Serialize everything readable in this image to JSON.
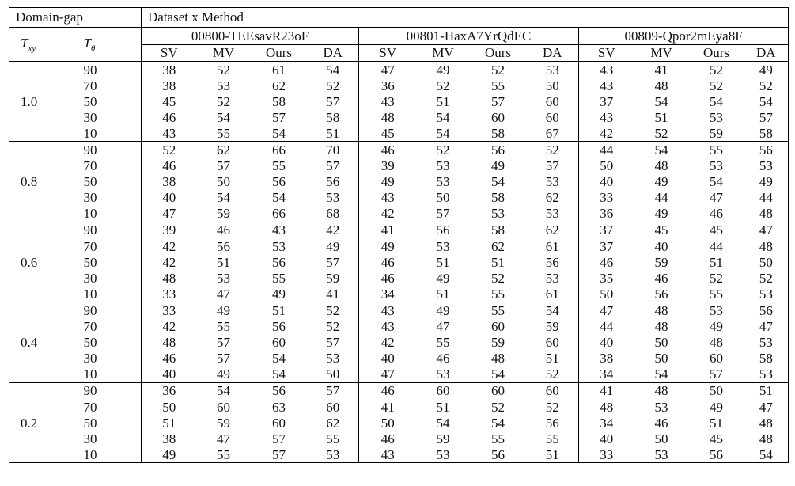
{
  "header": {
    "domain_gap": "Domain-gap",
    "dataset_method": "Dataset x Method",
    "txy_symbol": "T",
    "txy_sub": "xy",
    "ttheta_symbol": "T",
    "ttheta_sub": "θ",
    "methods": [
      "SV",
      "MV",
      "Ours",
      "DA"
    ]
  },
  "datasets": [
    "00800-TEEsavR23oF",
    "00801-HaxA7YrQdEC",
    "00809-Qpor2mEya8F"
  ],
  "blocks": [
    {
      "txy": "1.0",
      "rows": [
        {
          "t": "90",
          "v": [
            "38",
            "52",
            "61",
            "54",
            "47",
            "49",
            "52",
            "53",
            "43",
            "41",
            "52",
            "49"
          ]
        },
        {
          "t": "70",
          "v": [
            "38",
            "53",
            "62",
            "52",
            "36",
            "52",
            "55",
            "50",
            "43",
            "48",
            "52",
            "52"
          ]
        },
        {
          "t": "50",
          "v": [
            "45",
            "52",
            "58",
            "57",
            "43",
            "51",
            "57",
            "60",
            "37",
            "54",
            "54",
            "54"
          ]
        },
        {
          "t": "30",
          "v": [
            "46",
            "54",
            "57",
            "58",
            "48",
            "54",
            "60",
            "60",
            "43",
            "51",
            "53",
            "57"
          ]
        },
        {
          "t": "10",
          "v": [
            "43",
            "55",
            "54",
            "51",
            "45",
            "54",
            "58",
            "67",
            "42",
            "52",
            "59",
            "58"
          ]
        }
      ]
    },
    {
      "txy": "0.8",
      "rows": [
        {
          "t": "90",
          "v": [
            "52",
            "62",
            "66",
            "70",
            "46",
            "52",
            "56",
            "52",
            "44",
            "54",
            "55",
            "56"
          ]
        },
        {
          "t": "70",
          "v": [
            "46",
            "57",
            "55",
            "57",
            "39",
            "53",
            "49",
            "57",
            "50",
            "48",
            "53",
            "53"
          ]
        },
        {
          "t": "50",
          "v": [
            "38",
            "50",
            "56",
            "56",
            "49",
            "53",
            "54",
            "53",
            "40",
            "49",
            "54",
            "49"
          ]
        },
        {
          "t": "30",
          "v": [
            "40",
            "54",
            "54",
            "53",
            "43",
            "50",
            "58",
            "62",
            "33",
            "44",
            "47",
            "44"
          ]
        },
        {
          "t": "10",
          "v": [
            "47",
            "59",
            "66",
            "68",
            "42",
            "57",
            "53",
            "53",
            "36",
            "49",
            "46",
            "48"
          ]
        }
      ]
    },
    {
      "txy": "0.6",
      "rows": [
        {
          "t": "90",
          "v": [
            "39",
            "46",
            "43",
            "42",
            "41",
            "56",
            "58",
            "62",
            "37",
            "45",
            "45",
            "47"
          ]
        },
        {
          "t": "70",
          "v": [
            "42",
            "56",
            "53",
            "49",
            "49",
            "53",
            "62",
            "61",
            "37",
            "40",
            "44",
            "48"
          ]
        },
        {
          "t": "50",
          "v": [
            "42",
            "51",
            "56",
            "57",
            "46",
            "51",
            "51",
            "56",
            "46",
            "59",
            "51",
            "50"
          ]
        },
        {
          "t": "30",
          "v": [
            "48",
            "53",
            "55",
            "59",
            "46",
            "49",
            "52",
            "53",
            "35",
            "46",
            "52",
            "52"
          ]
        },
        {
          "t": "10",
          "v": [
            "33",
            "47",
            "49",
            "41",
            "34",
            "51",
            "55",
            "61",
            "50",
            "56",
            "55",
            "53"
          ]
        }
      ]
    },
    {
      "txy": "0.4",
      "rows": [
        {
          "t": "90",
          "v": [
            "33",
            "49",
            "51",
            "52",
            "43",
            "49",
            "55",
            "54",
            "47",
            "48",
            "53",
            "56"
          ]
        },
        {
          "t": "70",
          "v": [
            "42",
            "55",
            "56",
            "52",
            "43",
            "47",
            "60",
            "59",
            "44",
            "48",
            "49",
            "47"
          ]
        },
        {
          "t": "50",
          "v": [
            "48",
            "57",
            "60",
            "57",
            "42",
            "55",
            "59",
            "60",
            "40",
            "50",
            "48",
            "53"
          ]
        },
        {
          "t": "30",
          "v": [
            "46",
            "57",
            "54",
            "53",
            "40",
            "46",
            "48",
            "51",
            "38",
            "50",
            "60",
            "58"
          ]
        },
        {
          "t": "10",
          "v": [
            "40",
            "49",
            "54",
            "50",
            "47",
            "53",
            "54",
            "52",
            "34",
            "54",
            "57",
            "53"
          ]
        }
      ]
    },
    {
      "txy": "0.2",
      "rows": [
        {
          "t": "90",
          "v": [
            "36",
            "54",
            "56",
            "57",
            "46",
            "60",
            "60",
            "60",
            "41",
            "48",
            "50",
            "51"
          ]
        },
        {
          "t": "70",
          "v": [
            "50",
            "60",
            "63",
            "60",
            "41",
            "51",
            "52",
            "52",
            "48",
            "53",
            "49",
            "47"
          ]
        },
        {
          "t": "50",
          "v": [
            "51",
            "59",
            "60",
            "62",
            "50",
            "54",
            "54",
            "56",
            "34",
            "46",
            "51",
            "48"
          ]
        },
        {
          "t": "30",
          "v": [
            "38",
            "47",
            "57",
            "55",
            "46",
            "59",
            "55",
            "55",
            "40",
            "50",
            "45",
            "48"
          ]
        },
        {
          "t": "10",
          "v": [
            "49",
            "55",
            "57",
            "53",
            "43",
            "53",
            "56",
            "51",
            "33",
            "53",
            "56",
            "54"
          ]
        }
      ]
    }
  ]
}
